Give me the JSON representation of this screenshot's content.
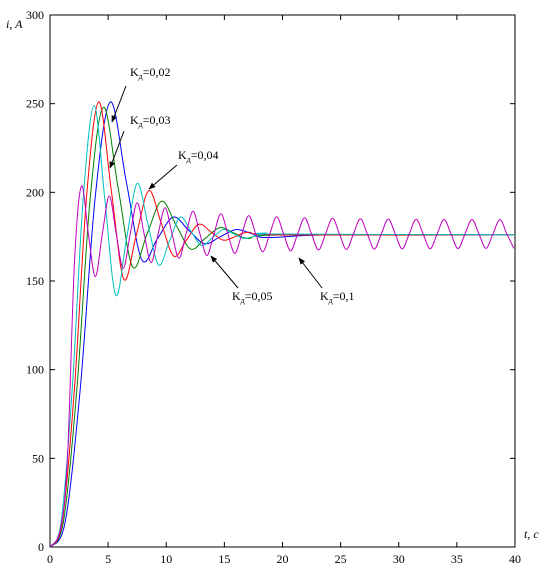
{
  "chart_data": {
    "type": "line",
    "ylabel": "i, A",
    "xlabel": "t, c",
    "xlim": [
      0,
      40
    ],
    "ylim": [
      0,
      300
    ],
    "xticks": [
      0,
      5,
      10,
      15,
      20,
      25,
      30,
      35,
      40
    ],
    "yticks": [
      0,
      50,
      100,
      150,
      200,
      250,
      300
    ],
    "grid": false,
    "series": [
      {
        "color": "#0000ff",
        "x": [
          0,
          1.3,
          2.6,
          3.9,
          5.2,
          6.55,
          7.9,
          9.25,
          10.6,
          11.95,
          13.3,
          14.65,
          16.0,
          17.35,
          18.7,
          24,
          40
        ],
        "values": [
          0,
          14,
          89,
          198,
          251,
          206.5,
          162,
          174,
          186,
          178.5,
          171,
          175,
          179,
          176.75,
          174.5,
          176,
          176
        ]
      },
      {
        "color": "#008000",
        "x": [
          0,
          1.15,
          2.3,
          3.45,
          4.6,
          5.85,
          7.1,
          8.35,
          9.6,
          10.85,
          12.1,
          13.35,
          14.6,
          15.85,
          17.1,
          20,
          40
        ],
        "values": [
          0,
          14,
          88,
          196,
          248,
          203,
          158,
          176.5,
          195,
          181.5,
          168,
          174,
          180,
          177,
          174,
          176,
          176
        ]
      },
      {
        "color": "#ff0000",
        "x": [
          0,
          1.05,
          2.1,
          3.15,
          4.2,
          5.275,
          6.35,
          7.425,
          8.5,
          9.575,
          10.65,
          11.725,
          12.8,
          13.875,
          14.95,
          16.025,
          17.1,
          20,
          40
        ],
        "values": [
          0,
          14,
          89,
          198,
          251,
          201,
          151,
          176,
          201,
          182.5,
          164,
          173,
          182,
          177.5,
          173,
          175.3,
          177.5,
          176,
          176
        ]
      },
      {
        "color": "#00bfbf",
        "x": [
          0,
          0.95,
          1.9,
          2.85,
          3.8,
          4.725,
          5.65,
          6.575,
          7.5,
          8.425,
          9.35,
          10.275,
          11.2,
          12.125,
          13.05,
          13.975,
          14.9,
          15.825,
          16.75,
          17.675,
          18.6,
          19.525,
          40
        ],
        "values": [
          0,
          14,
          88,
          196,
          249,
          195.5,
          142,
          173.5,
          205,
          182,
          159,
          172.5,
          186,
          178,
          170,
          174.5,
          179,
          176.5,
          174,
          175.5,
          177,
          176.5,
          176
        ]
      },
      {
        "color": "#bf00bf",
        "x": [
          0,
          0.9,
          1.5,
          2.1,
          2.7,
          3.3,
          3.9,
          4.5,
          5.1,
          5.7,
          6.3,
          6.9,
          7.5,
          8.1,
          8.7,
          9.3,
          9.9,
          10.5,
          11.1,
          11.7,
          12.3,
          12.9,
          13.5,
          14.1,
          14.7,
          15.3,
          15.9,
          16.5,
          17.1,
          17.7,
          18.3,
          18.9,
          19.5,
          20.1,
          20.7,
          21.3,
          21.9,
          22.5,
          23.1,
          23.7,
          24.3,
          24.9,
          25.5,
          26.1,
          26.7,
          27.3,
          27.9,
          28.5,
          29.1,
          29.7,
          30.3,
          30.9,
          31.5,
          32.1,
          32.7,
          33.3,
          33.9,
          34.5,
          35.1,
          35.7,
          36.3,
          36.9,
          37.5,
          38.1,
          38.7,
          39.3,
          39.9
        ],
        "values": [
          0,
          10,
          50,
          160,
          203.5,
          176.5,
          152.5,
          176.5,
          198,
          176.5,
          157.1,
          176.5,
          194.1,
          176.5,
          160.4,
          176.5,
          191.3,
          176.5,
          162.8,
          176.5,
          189.3,
          176.5,
          164.4,
          176.5,
          187.9,
          176.5,
          165.6,
          176.5,
          186.9,
          176.5,
          166.5,
          176.5,
          186.2,
          176.5,
          167,
          176.5,
          185.7,
          176.5,
          167.5,
          176.5,
          185.4,
          176.5,
          167.8,
          176.5,
          185.1,
          176.5,
          168,
          176.5,
          184.9,
          176.5,
          168.1,
          176.5,
          184.8,
          176.5,
          168.2,
          176.5,
          184.7,
          176.5,
          168.3,
          176.5,
          184.7,
          176.5,
          168.4,
          176.5,
          184.6,
          176.5,
          168.4
        ]
      }
    ],
    "annotations": [
      {
        "base": "K",
        "sub": "д",
        "text": "=0,02"
      },
      {
        "base": "K",
        "sub": "д",
        "text": "=0,03"
      },
      {
        "base": "K",
        "sub": "д",
        "text": "=0,04"
      },
      {
        "base": "K",
        "sub": "д",
        "text": "=0,05"
      },
      {
        "base": "K",
        "sub": "д",
        "text": "=0,1"
      }
    ]
  }
}
